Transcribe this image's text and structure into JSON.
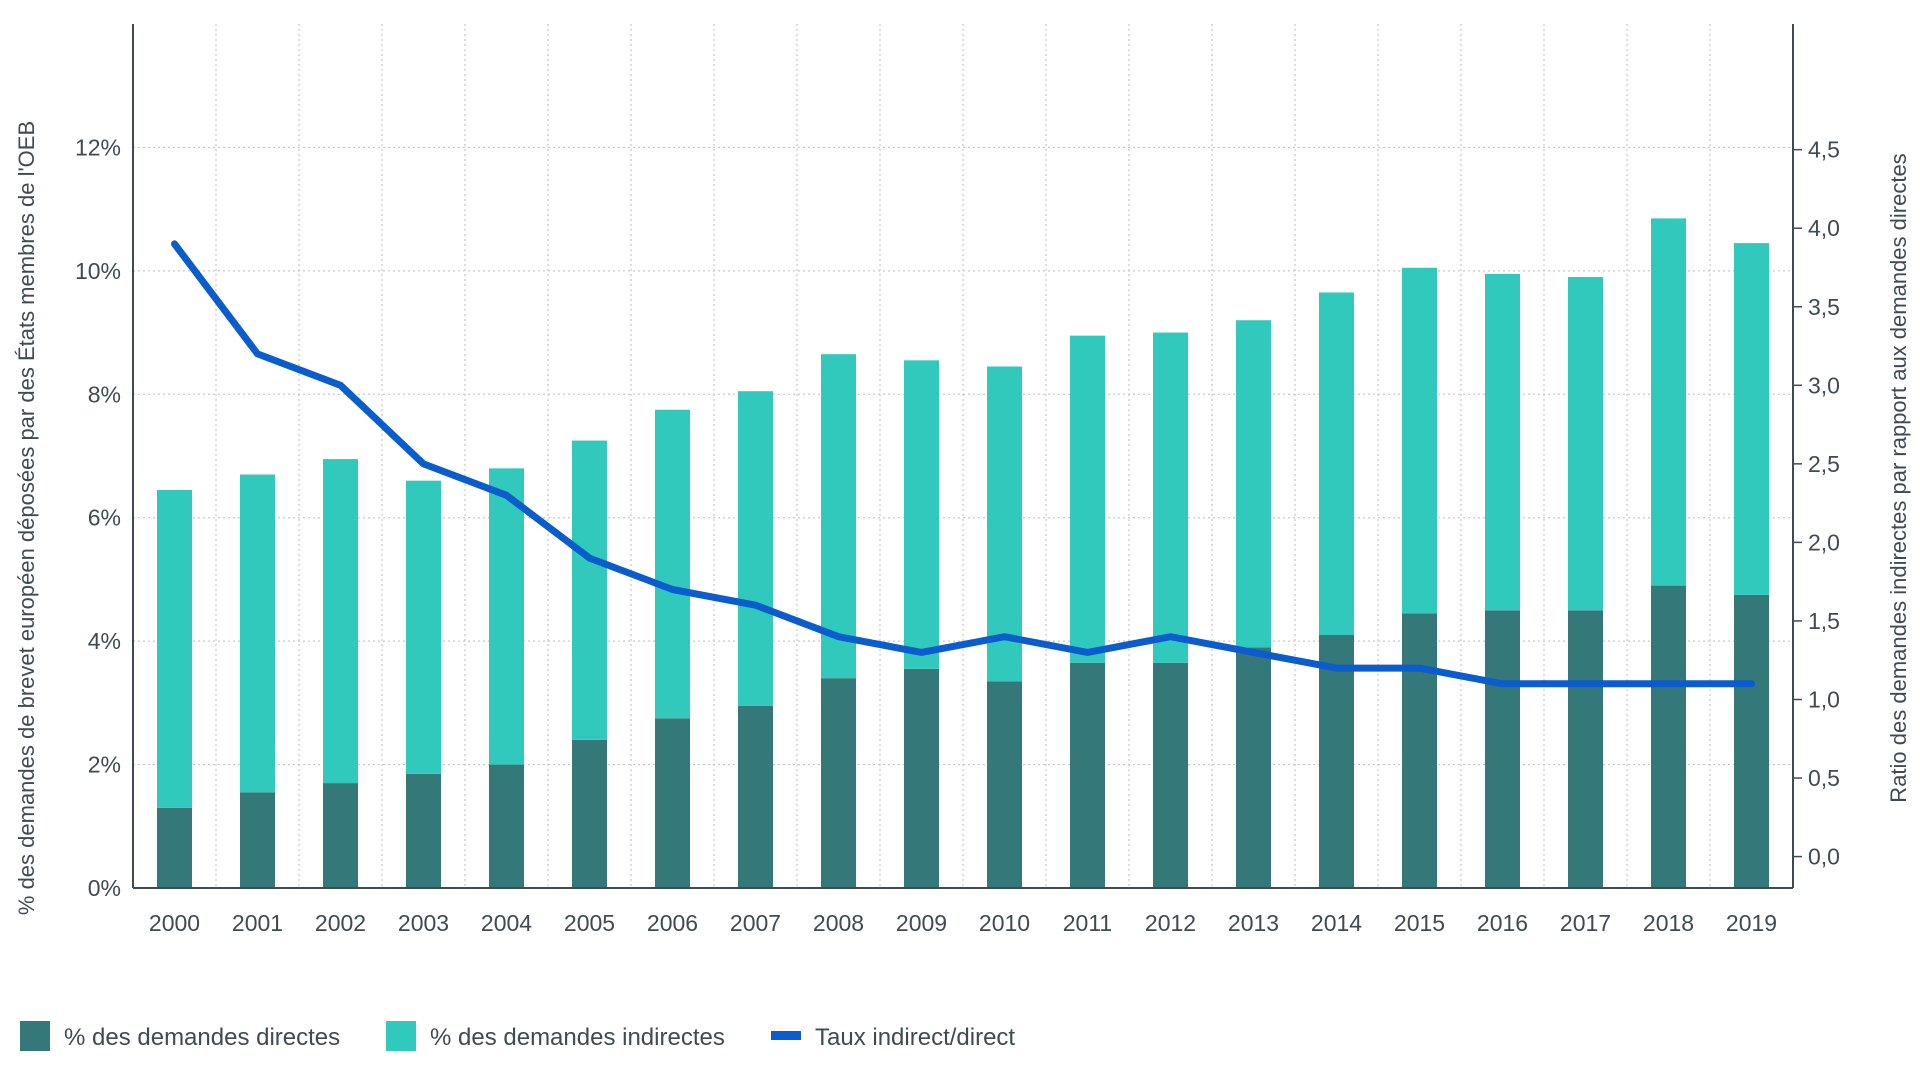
{
  "chart_data": {
    "type": "bar",
    "stacked": true,
    "categories": [
      "2000",
      "2001",
      "2002",
      "2003",
      "2004",
      "2005",
      "2006",
      "2007",
      "2008",
      "2009",
      "2010",
      "2011",
      "2012",
      "2013",
      "2014",
      "2015",
      "2016",
      "2017",
      "2018",
      "2019"
    ],
    "series": [
      {
        "name": "% des demandes directes",
        "type": "bar",
        "axis": "left",
        "color": "#34787a",
        "values": [
          1.3,
          1.55,
          1.7,
          1.85,
          2.0,
          2.4,
          2.75,
          2.95,
          3.4,
          3.55,
          3.35,
          3.65,
          3.65,
          3.9,
          4.1,
          4.45,
          4.5,
          4.5,
          4.9,
          4.75
        ]
      },
      {
        "name": "% des demandes indirectes",
        "type": "bar",
        "axis": "left",
        "color": "#32c9bd",
        "values": [
          5.15,
          5.15,
          5.25,
          4.75,
          4.8,
          4.85,
          5.0,
          5.1,
          5.25,
          5.0,
          5.1,
          5.3,
          5.35,
          5.3,
          5.55,
          5.6,
          5.45,
          5.4,
          5.95,
          5.7
        ]
      },
      {
        "name": "Taux indirect/direct",
        "type": "line",
        "axis": "right",
        "color": "#0b5ccc",
        "values": [
          3.9,
          3.2,
          3.0,
          2.5,
          2.3,
          1.9,
          1.7,
          1.6,
          1.4,
          1.3,
          1.4,
          1.3,
          1.4,
          1.3,
          1.2,
          1.2,
          1.1,
          1.1,
          1.1,
          1.1
        ]
      }
    ],
    "ylabel": "% des demandes de brevet européen déposées par des États membres de l'OEB",
    "y2label": "Ratio des demandes indirectes par rapport aux demandes directes",
    "ylim": [
      0,
      14
    ],
    "y2lim": [
      -0.2,
      5.3
    ],
    "yticks": [
      0,
      2,
      4,
      6,
      8,
      10,
      12
    ],
    "yticklabels": [
      "0%",
      "2%",
      "4%",
      "6%",
      "8%",
      "10%",
      "12%"
    ],
    "y2ticks": [
      0,
      0.5,
      1.0,
      1.5,
      2.0,
      2.5,
      3.0,
      3.5,
      4.0,
      4.5
    ],
    "y2ticklabels": [
      "0,0",
      "0,5",
      "1,0",
      "1,5",
      "2,0",
      "2,5",
      "3,0",
      "3,5",
      "4,0",
      "4,5"
    ],
    "grid": true,
    "legend_position": "bottom-left"
  }
}
